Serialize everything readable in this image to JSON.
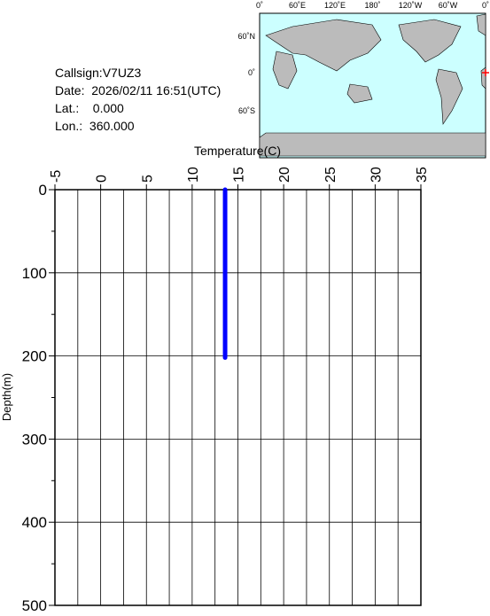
{
  "chart_data": {
    "type": "line",
    "info": {
      "callsign": "Callsign:V7UZ3",
      "date": "Date:  2026/02/11 16:51(UTC)",
      "lat": "Lat.:    0.000",
      "lon": "Lon.:  360.000"
    },
    "map": {
      "lon_labels": [
        "0˚",
        "60˚E",
        "120˚E",
        "180˚",
        "120˚W",
        "60˚W",
        "0˚"
      ],
      "lat_labels": [
        "60˚N",
        "0˚",
        "60˚S"
      ],
      "position_lon": 360,
      "position_lat": 0
    },
    "x_label": "Temperature(C)",
    "y_label": "Depth(m)",
    "xlim": [
      -5,
      35
    ],
    "xticks": [
      -5,
      0,
      5,
      10,
      15,
      20,
      25,
      30,
      35
    ],
    "xminorticks": [
      -2.5,
      2.5,
      7.5,
      12.5,
      17.5,
      22.5,
      27.5,
      32.5
    ],
    "ylim": [
      0,
      500
    ],
    "yticks": [
      0,
      100,
      200,
      300,
      400,
      500
    ],
    "yminorticks": [
      50,
      150,
      250,
      350,
      450
    ],
    "y_inverted": true,
    "grid": true,
    "series": [
      {
        "color": "#0000ff",
        "x": [
          13.6,
          13.6
        ],
        "values": [
          0,
          202
        ]
      }
    ]
  }
}
